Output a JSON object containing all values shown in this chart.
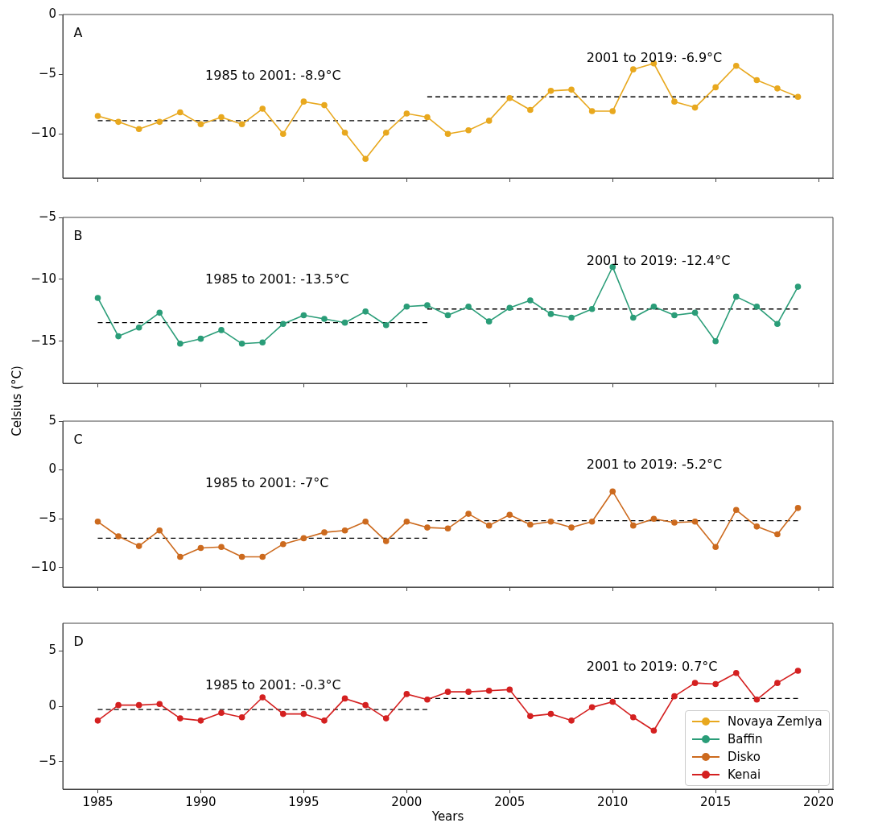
{
  "chart_data": [
    {
      "type": "line",
      "annotations": [
        "A",
        "1985 to 2001: -8.9°C",
        "2001 to 2019: -6.9°C"
      ],
      "x": [
        1985,
        1986,
        1987,
        1988,
        1989,
        1990,
        1991,
        1992,
        1993,
        1994,
        1995,
        1996,
        1997,
        1998,
        1999,
        2000,
        2001,
        2002,
        2003,
        2004,
        2005,
        2006,
        2007,
        2008,
        2009,
        2010,
        2011,
        2012,
        2013,
        2014,
        2015,
        2016,
        2017,
        2018,
        2019
      ],
      "series": [
        {
          "name": "Novaya Zemlya",
          "color": "#e8a81e",
          "values": [
            -8.5,
            -9.0,
            -9.6,
            -9.0,
            -8.2,
            -9.2,
            -8.6,
            -9.2,
            -7.9,
            -10.0,
            -7.3,
            -7.6,
            -9.9,
            -12.1,
            -9.9,
            -8.3,
            -8.6,
            -10.0,
            -9.7,
            -8.9,
            -7.0,
            -8.0,
            -6.4,
            -6.3,
            -8.1,
            -8.1,
            -4.6,
            -4.1,
            -7.3,
            -7.8,
            -6.1,
            -4.3,
            -5.5,
            -6.2,
            -6.9
          ]
        },
        {
          "type": "line",
          "x": [
            1985,
            2001
          ],
          "values": [
            -8.9,
            -8.9
          ],
          "color": "#000000",
          "line_style": "dashed",
          "marker": "none"
        },
        {
          "type": "line",
          "x": [
            2001,
            2019
          ],
          "values": [
            -6.9,
            -6.9
          ],
          "color": "#000000",
          "line_style": "dashed",
          "marker": "none"
        }
      ],
      "xlim": [
        1983.3,
        2020.7
      ],
      "xticks": [
        1985,
        1990,
        1995,
        2000,
        2005,
        2010,
        2015,
        2020
      ],
      "ylim": [
        -13.7,
        0
      ],
      "yticks": [
        -10,
        -5,
        0
      ],
      "tick_labels": "y",
      "marker": "circle",
      "grid": false,
      "legend": false
    },
    {
      "type": "line",
      "annotations": [
        "B",
        "1985 to 2001: -13.5°C",
        "2001 to 2019: -12.4°C"
      ],
      "x": [
        1985,
        1986,
        1987,
        1988,
        1989,
        1990,
        1991,
        1992,
        1993,
        1994,
        1995,
        1996,
        1997,
        1998,
        1999,
        2000,
        2001,
        2002,
        2003,
        2004,
        2005,
        2006,
        2007,
        2008,
        2009,
        2010,
        2011,
        2012,
        2013,
        2014,
        2015,
        2016,
        2017,
        2018,
        2019
      ],
      "series": [
        {
          "name": "Baffin",
          "color": "#2a9d78",
          "values": [
            -11.5,
            -14.6,
            -13.9,
            -12.7,
            -15.2,
            -14.8,
            -14.1,
            -15.2,
            -15.1,
            -13.6,
            -12.9,
            -13.2,
            -13.5,
            -12.6,
            -13.7,
            -12.2,
            -12.1,
            -12.9,
            -12.2,
            -13.4,
            -12.3,
            -11.7,
            -12.8,
            -13.1,
            -12.4,
            -9.0,
            -13.1,
            -12.2,
            -12.9,
            -12.7,
            -15.0,
            -11.4,
            -12.2,
            -13.6,
            -10.6
          ]
        },
        {
          "type": "line",
          "x": [
            1985,
            2001
          ],
          "values": [
            -13.5,
            -13.5
          ],
          "color": "#000000",
          "line_style": "dashed",
          "marker": "none"
        },
        {
          "type": "line",
          "x": [
            2001,
            2019
          ],
          "values": [
            -12.4,
            -12.4
          ],
          "color": "#000000",
          "line_style": "dashed",
          "marker": "none"
        }
      ],
      "xlim": [
        1983.3,
        2020.7
      ],
      "xticks": [
        1985,
        1990,
        1995,
        2000,
        2005,
        2010,
        2015,
        2020
      ],
      "ylim": [
        -18.4,
        -5
      ],
      "yticks": [
        -15,
        -10,
        -5
      ],
      "tick_labels": "y",
      "marker": "circle",
      "grid": false,
      "legend": false
    },
    {
      "type": "line",
      "ylabel": "Celsius (°C)",
      "annotations": [
        "C",
        "1985 to 2001: -7°C",
        "2001 to 2019: -5.2°C"
      ],
      "x": [
        1985,
        1986,
        1987,
        1988,
        1989,
        1990,
        1991,
        1992,
        1993,
        1994,
        1995,
        1996,
        1997,
        1998,
        1999,
        2000,
        2001,
        2002,
        2003,
        2004,
        2005,
        2006,
        2007,
        2008,
        2009,
        2010,
        2011,
        2012,
        2013,
        2014,
        2015,
        2016,
        2017,
        2018,
        2019
      ],
      "series": [
        {
          "name": "Disko",
          "color": "#cc6a1e",
          "values": [
            -5.3,
            -6.8,
            -7.8,
            -6.2,
            -8.9,
            -8.0,
            -7.9,
            -8.9,
            -8.9,
            -7.6,
            -7.0,
            -6.4,
            -6.2,
            -5.3,
            -7.3,
            -5.3,
            -5.9,
            -6.0,
            -4.5,
            -5.7,
            -4.6,
            -5.6,
            -5.3,
            -5.9,
            -5.3,
            -2.2,
            -5.7,
            -5.0,
            -5.4,
            -5.3,
            -7.9,
            -4.1,
            -5.8,
            -6.6,
            -3.9
          ]
        },
        {
          "type": "line",
          "x": [
            1985,
            2001
          ],
          "values": [
            -7,
            -7
          ],
          "color": "#000000",
          "line_style": "dashed",
          "marker": "none"
        },
        {
          "type": "line",
          "x": [
            2001,
            2019
          ],
          "values": [
            -5.2,
            -5.2
          ],
          "color": "#000000",
          "line_style": "dashed",
          "marker": "none"
        }
      ],
      "xlim": [
        1983.3,
        2020.7
      ],
      "xticks": [
        1985,
        1990,
        1995,
        2000,
        2005,
        2010,
        2015,
        2020
      ],
      "ylim": [
        -12,
        5
      ],
      "yticks": [
        -10,
        -5,
        0,
        5
      ],
      "tick_labels": "y",
      "marker": "circle",
      "grid": false,
      "legend": false
    },
    {
      "type": "line",
      "xlabel": "Years",
      "annotations": [
        "D",
        "1985 to 2001: -0.3°C",
        "2001 to 2019: 0.7°C"
      ],
      "x": [
        1985,
        1986,
        1987,
        1988,
        1989,
        1990,
        1991,
        1992,
        1993,
        1994,
        1995,
        1996,
        1997,
        1998,
        1999,
        2000,
        2001,
        2002,
        2003,
        2004,
        2005,
        2006,
        2007,
        2008,
        2009,
        2010,
        2011,
        2012,
        2013,
        2014,
        2015,
        2016,
        2017,
        2018,
        2019
      ],
      "series": [
        {
          "name": "Kenai",
          "color": "#d42020",
          "values": [
            -1.3,
            0.1,
            0.1,
            0.2,
            -1.1,
            -1.3,
            -0.6,
            -1.0,
            0.8,
            -0.7,
            -0.7,
            -1.3,
            0.7,
            0.1,
            -1.1,
            1.1,
            0.6,
            1.3,
            1.3,
            1.4,
            1.5,
            -0.9,
            -0.7,
            -1.3,
            -0.1,
            0.4,
            -1.0,
            -2.2,
            0.9,
            2.1,
            2.0,
            3.0,
            0.6,
            2.1,
            3.2
          ]
        },
        {
          "type": "line",
          "x": [
            1985,
            2001
          ],
          "values": [
            -0.3,
            -0.3
          ],
          "color": "#000000",
          "line_style": "dashed",
          "marker": "none"
        },
        {
          "type": "line",
          "x": [
            2001,
            2019
          ],
          "values": [
            0.7,
            0.7
          ],
          "color": "#000000",
          "line_style": "dashed",
          "marker": "none"
        }
      ],
      "xlim": [
        1983.3,
        2020.7
      ],
      "xticks": [
        1985,
        1990,
        1995,
        2000,
        2005,
        2010,
        2015,
        2020
      ],
      "ylim": [
        -7.5,
        7.5
      ],
      "yticks": [
        -5,
        0,
        5
      ],
      "marker": "circle",
      "grid": false,
      "legend": "lower right"
    }
  ]
}
